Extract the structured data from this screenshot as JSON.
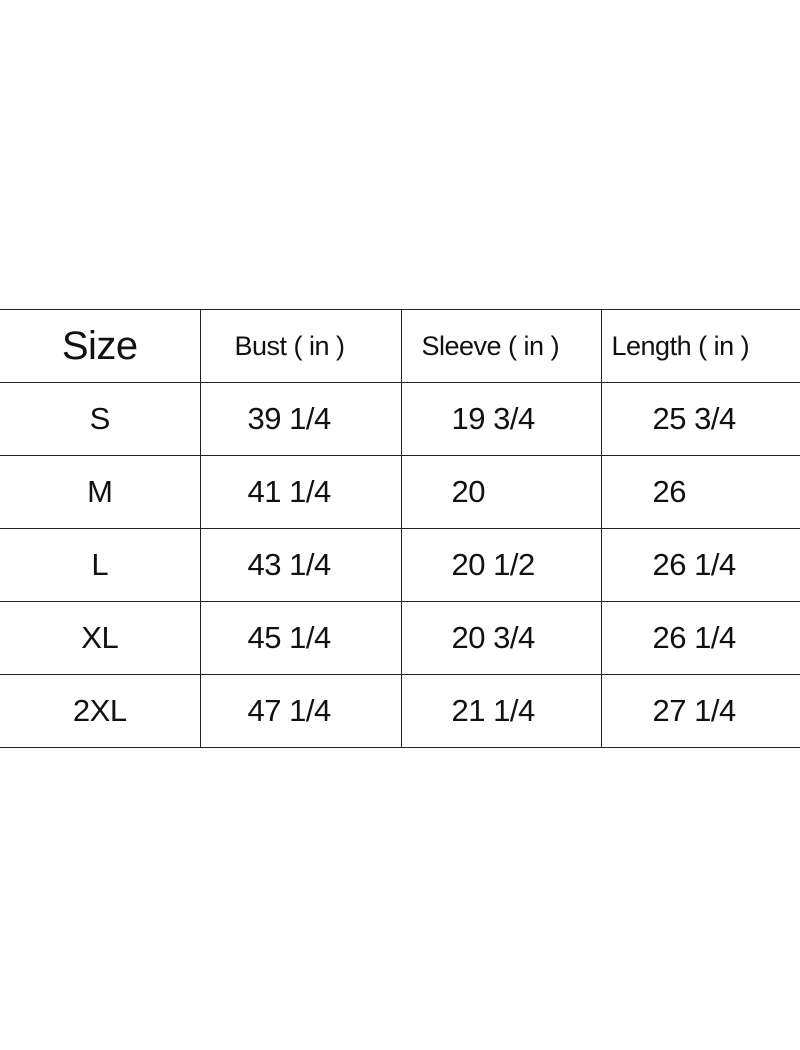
{
  "table": {
    "headers": [
      "Size",
      "Bust ( in )",
      "Sleeve ( in )",
      "Length ( in )"
    ],
    "rows": [
      [
        "S",
        "39 1/4",
        "19 3/4",
        "25 3/4"
      ],
      [
        "M",
        "41 1/4",
        "20",
        "26"
      ],
      [
        "L",
        "43 1/4",
        "20 1/2",
        "26 1/4"
      ],
      [
        "XL",
        "45 1/4",
        "20 3/4",
        "26 1/4"
      ],
      [
        "2XL",
        "47 1/4",
        "21 1/4",
        "27 1/4"
      ]
    ]
  }
}
